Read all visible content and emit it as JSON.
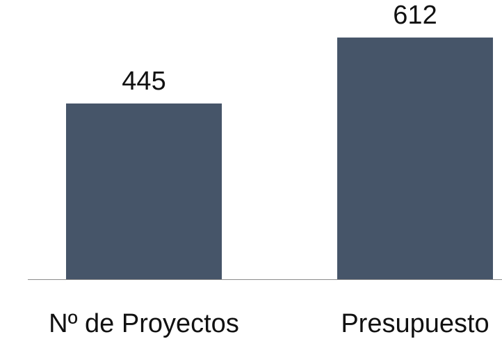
{
  "chart_data": {
    "type": "bar",
    "categories": [
      "Nº de Proyectos",
      "Presupuesto"
    ],
    "values": [
      445,
      612
    ],
    "title": "",
    "xlabel": "",
    "ylabel": "",
    "ylim": [
      0,
      700
    ],
    "grid": false,
    "legend": "none",
    "bar_color": "#465569",
    "axis_color": "#8c8c8c",
    "show_data_labels": true
  }
}
